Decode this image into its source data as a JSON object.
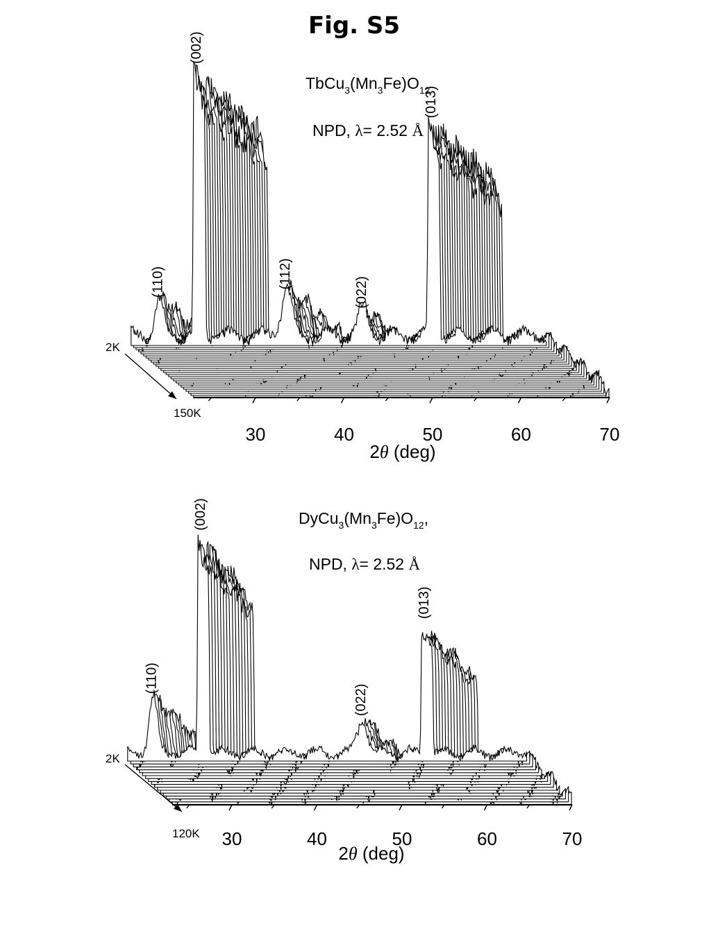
{
  "figure_title": "Fig. S5",
  "chart_data": [
    {
      "type": "line",
      "subtype": "waterfall-3d",
      "compound": {
        "prefix": "TbCu",
        "s1": "3",
        "mid1": "(Mn",
        "s2": "3",
        "mid2": "Fe)O",
        "s3": "12",
        "tail": ""
      },
      "method": {
        "text1": "NPD, ",
        "lambda": "λ",
        "text2": "= 2.52 ",
        "unit": "Å"
      },
      "xlabel": {
        "prefix": "2",
        "theta": "θ",
        "suffix": " (deg)"
      },
      "x_ticks": [
        "30",
        "40",
        "50",
        "60",
        "70"
      ],
      "xlim": [
        23,
        70
      ],
      "temperature_labels": {
        "start": "2K",
        "end": "150K"
      },
      "n_traces": 26,
      "peaks": [
        {
          "label": "(110)",
          "two_theta": 26.2,
          "intensity": 0.14,
          "width": 0.55
        },
        {
          "label": "(002)",
          "two_theta": 30.7,
          "intensity": 1.0,
          "width": 0.35
        },
        {
          "label": "(112)",
          "two_theta": 40.6,
          "intensity": 0.17,
          "width": 0.7
        },
        {
          "label": "(022)",
          "two_theta": 49.2,
          "intensity": 0.1,
          "width": 0.7
        },
        {
          "label": "(013)",
          "two_theta": 57.2,
          "intensity": 0.8,
          "width": 0.35
        }
      ]
    },
    {
      "type": "line",
      "subtype": "waterfall-3d",
      "compound": {
        "prefix": "DyCu",
        "s1": "3",
        "mid1": "(Mn",
        "s2": "3",
        "mid2": "Fe)O",
        "s3": "12",
        "tail": ","
      },
      "method": {
        "text1": "NPD, ",
        "lambda": "λ",
        "text2": "= 2.52 ",
        "unit": "Å"
      },
      "xlabel": {
        "prefix": "2",
        "theta": "θ",
        "suffix": " (deg)"
      },
      "x_ticks": [
        "30",
        "40",
        "50",
        "60",
        "70"
      ],
      "xlim": [
        23,
        70
      ],
      "temperature_labels": {
        "start": "2K",
        "end": "120K"
      },
      "n_traces": 16,
      "peaks": [
        {
          "label": "(110)",
          "two_theta": 26.0,
          "intensity": 0.26,
          "width": 0.55
        },
        {
          "label": "(002)",
          "two_theta": 31.9,
          "intensity": 1.0,
          "width": 0.35
        },
        {
          "label": "(022)",
          "two_theta": 50.6,
          "intensity": 0.16,
          "width": 0.7
        },
        {
          "label": "(013)",
          "two_theta": 58.2,
          "intensity": 0.6,
          "width": 0.4
        }
      ]
    }
  ]
}
